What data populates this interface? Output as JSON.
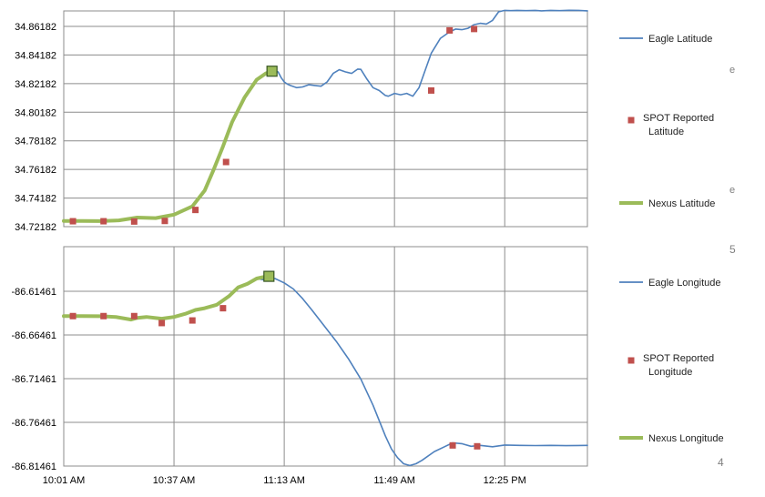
{
  "colors": {
    "eagle": "#4f81bd",
    "spot": "#c0504d",
    "nexus": "#9bbb59",
    "nexus_marker_edge": "#375623",
    "grid": "#8c8c8c",
    "tick_text": "#000000",
    "legend_text": "#1f1f1f",
    "stray_text": "#7f7f7f"
  },
  "stray_labels": {
    "top_e_1": "e",
    "top_e_2": "e",
    "page_5": "5",
    "page_4": "4"
  },
  "x_axis": {
    "tick_labels": [
      "10:01 AM",
      "10:37 AM",
      "11:13 AM",
      "11:49 AM",
      "12:25 PM"
    ],
    "range_minutes": [
      601,
      772
    ]
  },
  "chart_data": [
    {
      "type": "line",
      "title": "",
      "ylabel": "",
      "ylim": [
        34.72182,
        34.87182
      ],
      "y_tick_labels": [
        "34.86182",
        "34.84182",
        "34.82182",
        "34.80182",
        "34.78182",
        "34.76182",
        "34.74182",
        "34.72182"
      ],
      "y_ticks": [
        34.86182,
        34.84182,
        34.82182,
        34.80182,
        34.78182,
        34.76182,
        34.74182,
        34.72182
      ],
      "legend": [
        "Eagle Latitude",
        "SPOT Reported Latitude",
        "Nexus Latitude"
      ],
      "legend_placement": "right",
      "grid": true,
      "series": [
        {
          "name": "Eagle Latitude",
          "kind": "line",
          "x": [
            601,
            607,
            613,
            619,
            625,
            631,
            637,
            643,
            647,
            650,
            653,
            656,
            660,
            664,
            667,
            670,
            671,
            672,
            673,
            674,
            675,
            677,
            679,
            681,
            683,
            685,
            687,
            689,
            691,
            693,
            695,
            697,
            698,
            700,
            702,
            704,
            706,
            707,
            709,
            711,
            713,
            715,
            717,
            719,
            721,
            724,
            727,
            729,
            731,
            733,
            735,
            737,
            739,
            741,
            743,
            745,
            747,
            749,
            752,
            755,
            757,
            760,
            763,
            766,
            769,
            772
          ],
          "y": [
            34.7258,
            34.7258,
            34.7257,
            34.7262,
            34.7282,
            34.7278,
            34.7302,
            34.736,
            34.747,
            34.762,
            34.778,
            34.795,
            34.812,
            34.8245,
            34.829,
            34.8305,
            34.83,
            34.826,
            34.823,
            34.8215,
            34.8205,
            34.819,
            34.8195,
            34.821,
            34.8205,
            34.82,
            34.823,
            34.829,
            34.8315,
            34.83,
            34.829,
            34.832,
            34.8318,
            34.825,
            34.819,
            34.817,
            34.8135,
            34.813,
            34.815,
            34.814,
            34.815,
            34.813,
            34.819,
            34.831,
            34.843,
            34.8535,
            34.858,
            34.86,
            34.8595,
            34.8605,
            34.863,
            34.864,
            34.8635,
            34.866,
            34.872,
            34.873,
            34.8728,
            34.873,
            34.8728,
            34.873,
            34.8727,
            34.873,
            34.8728,
            34.8731,
            34.873,
            34.8727
          ]
        },
        {
          "name": "SPOT Reported Latitude",
          "kind": "markers",
          "x": [
            604,
            614,
            624,
            634,
            644,
            654,
            721,
            727,
            735
          ],
          "y": [
            34.7256,
            34.7256,
            34.7254,
            34.7258,
            34.7335,
            34.767,
            34.817,
            34.859,
            34.86
          ]
        },
        {
          "name": "Nexus Latitude",
          "kind": "line",
          "x": [
            601,
            607,
            613,
            619,
            625,
            631,
            637,
            643,
            647,
            650,
            653,
            656,
            660,
            664,
            667,
            669
          ],
          "y": [
            34.7258,
            34.7258,
            34.7257,
            34.7262,
            34.7282,
            34.7278,
            34.7302,
            34.736,
            34.747,
            34.762,
            34.778,
            34.795,
            34.812,
            34.8245,
            34.829,
            34.8305
          ],
          "end_marker": {
            "x": 669,
            "y": 34.8305
          }
        }
      ]
    },
    {
      "type": "line",
      "title": "",
      "ylabel": "",
      "ylim": [
        -86.81461,
        -86.58461
      ],
      "y_tick_labels": [
        "-86.61461",
        "-86.66461",
        "-86.71461",
        "-86.76461",
        "-86.81461"
      ],
      "y_ticks": [
        -86.61461,
        -86.66461,
        -86.71461,
        -86.76461,
        -86.81461
      ],
      "legend": [
        "Eagle Longitude",
        "SPOT Reported Longitude",
        "Nexus Longitude"
      ],
      "legend_placement": "right",
      "grid": true,
      "series": [
        {
          "name": "Eagle Longitude",
          "kind": "line",
          "x": [
            601,
            607,
            613,
            618,
            623,
            625,
            628,
            633,
            637,
            641,
            644,
            647,
            651,
            655,
            658,
            661,
            664,
            667,
            670,
            673,
            676,
            679,
            682,
            686,
            690,
            694,
            698,
            702,
            706,
            708,
            710,
            712,
            714,
            716,
            718,
            722,
            725,
            728,
            731,
            734,
            737,
            741,
            745,
            750,
            755,
            760,
            765,
            772
          ],
          "y": [
            -86.643,
            -86.643,
            -86.6432,
            -86.644,
            -86.647,
            -86.645,
            -86.644,
            -86.646,
            -86.644,
            -86.64,
            -86.636,
            -86.634,
            -86.63,
            -86.62,
            -86.61,
            -86.606,
            -86.6,
            -86.602,
            -86.6,
            -86.605,
            -86.612,
            -86.623,
            -86.636,
            -86.654,
            -86.672,
            -86.692,
            -86.715,
            -86.745,
            -86.78,
            -86.795,
            -86.805,
            -86.812,
            -86.814,
            -86.812,
            -86.808,
            -86.798,
            -86.793,
            -86.788,
            -86.789,
            -86.792,
            -86.791,
            -86.7925,
            -86.7905,
            -86.791,
            -86.7912,
            -86.791,
            -86.7913,
            -86.791
          ]
        },
        {
          "name": "SPOT Reported Longitude",
          "kind": "markers",
          "x": [
            604,
            614,
            624,
            633,
            643,
            653,
            728,
            736
          ],
          "y": [
            -86.643,
            -86.643,
            -86.643,
            -86.651,
            -86.648,
            -86.634,
            -86.791,
            -86.792
          ]
        },
        {
          "name": "Nexus Longitude",
          "kind": "line",
          "x": [
            601,
            607,
            613,
            618,
            623,
            625,
            628,
            633,
            637,
            641,
            644,
            647,
            651,
            655,
            658,
            661,
            664,
            666,
            668
          ],
          "y": [
            -86.643,
            -86.643,
            -86.6432,
            -86.644,
            -86.647,
            -86.645,
            -86.644,
            -86.646,
            -86.644,
            -86.64,
            -86.636,
            -86.634,
            -86.63,
            -86.62,
            -86.61,
            -86.606,
            -86.6,
            -86.5985,
            -86.5975
          ],
          "end_marker": {
            "x": 668,
            "y": -86.5975
          }
        }
      ]
    }
  ]
}
